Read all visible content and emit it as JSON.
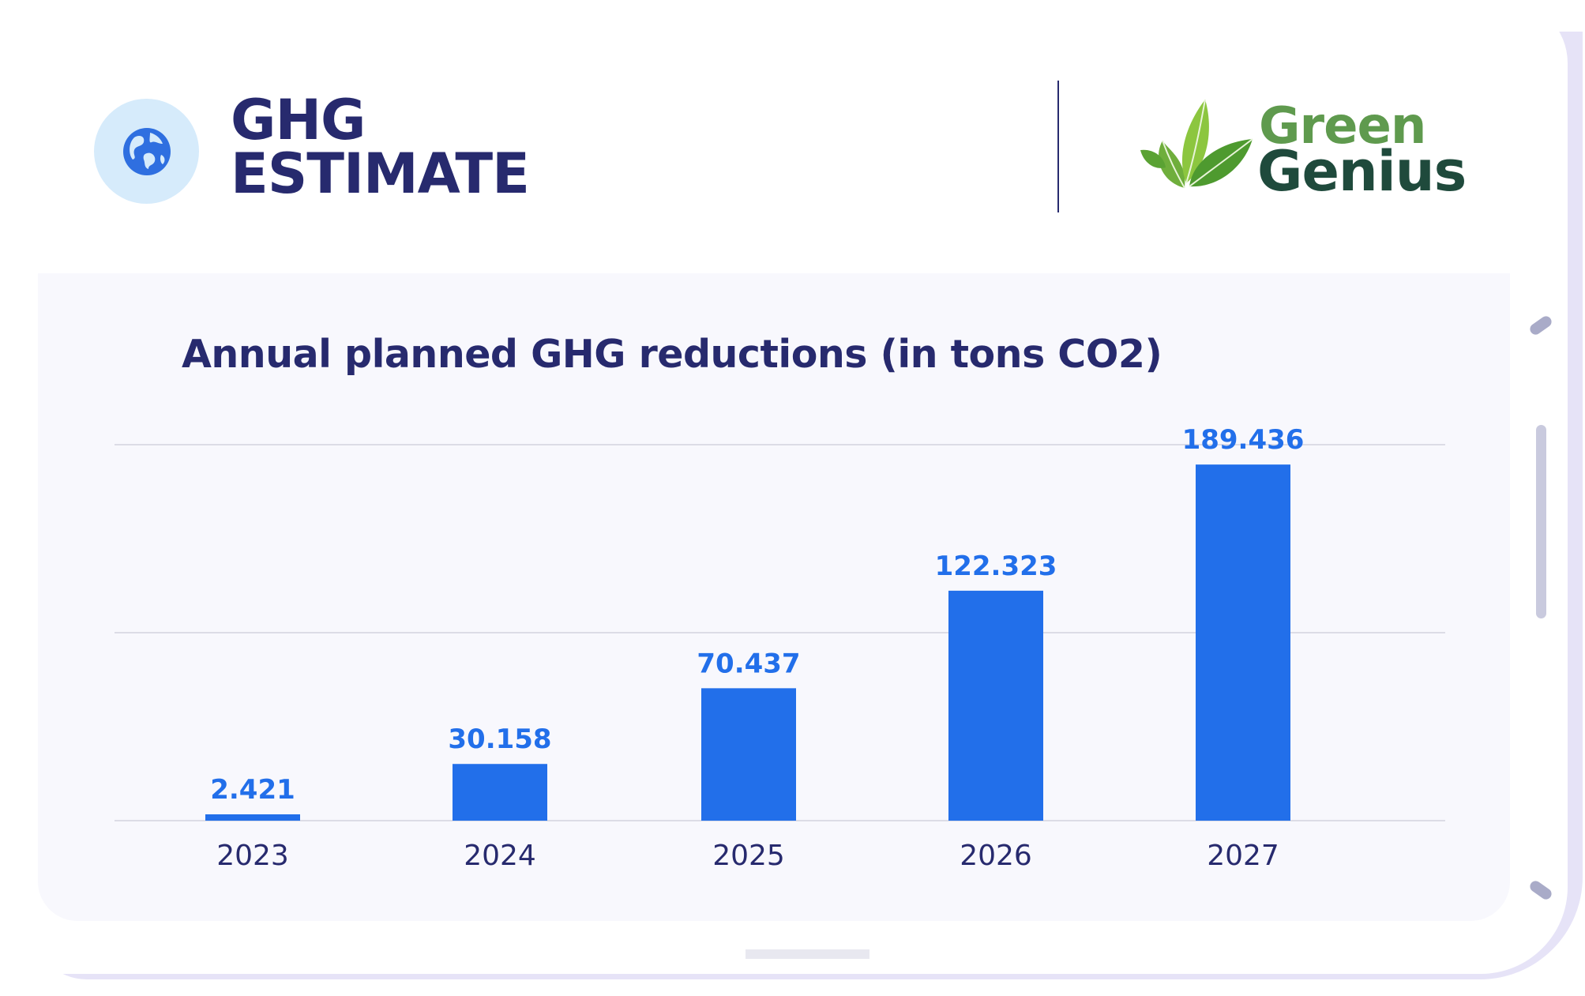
{
  "header": {
    "title_line1": "GHG",
    "title_line2": "ESTIMATE",
    "icon": "globe-icon",
    "accent": "#272a6e",
    "icon_bg": "#d6ebfb",
    "icon_color": "#2f6fe0"
  },
  "logo": {
    "word1": "Green",
    "word2": "Genius",
    "icon": "leaves-icon",
    "color1": "#5f9a4e",
    "color2": "#1f4a3c"
  },
  "chart_data": {
    "type": "bar",
    "title": "Annual planned GHG reductions (in tons CO2)",
    "categories": [
      "2023",
      "2024",
      "2025",
      "2026",
      "2027"
    ],
    "values": [
      2.421,
      30.158,
      70.437,
      122.323,
      189.436
    ],
    "data_labels": [
      "2.421",
      "30.158",
      "70.437",
      "122.323",
      "189.436"
    ],
    "ylim": [
      0,
      200
    ],
    "gridlines": [
      0,
      100,
      200
    ],
    "xlabel": "",
    "ylabel": "",
    "bar_color": "#226fea",
    "label_color": "#226fea",
    "tick_color": "#272a6e",
    "grid_color": "#dcdce6"
  }
}
